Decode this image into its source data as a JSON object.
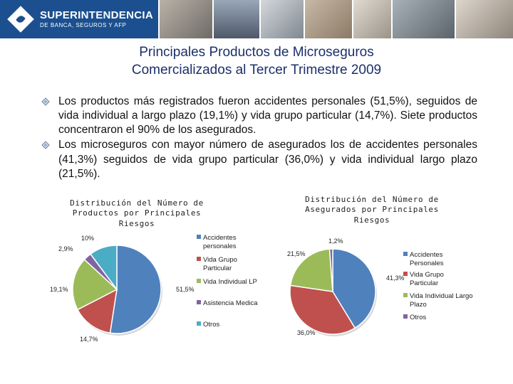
{
  "header": {
    "logo_line1": "SUPERINTENDENCIA",
    "logo_line2": "DE BANCA, SEGUROS Y AFP"
  },
  "title_line1": "Principales Productos de Microseguros",
  "title_line2": "Comercializados al Tercer Trimestre 2009",
  "bullets": [
    "Los productos más registrados fueron accidentes personales (51,5%), seguidos de vida individual  a largo plazo (19,1%) y vida grupo particular (14,7%). Siete productos concentraron el 90% de los asegurados.",
    "Los microseguros con mayor número de asegurados los de accidentes personales (41,3%) seguidos de vida grupo particular (36,0%) y vida individual largo plazo (21,5%)."
  ],
  "chart_data": [
    {
      "type": "pie",
      "title_lines": [
        "Distribución del Número de",
        "Productos  por Principales",
        "Riesgos"
      ],
      "categories": [
        "Accidentes personales",
        "Vida Grupo Particular",
        "Vida Individual LP",
        "Asistencia Medica",
        "Otros"
      ],
      "legend_lines": [
        [
          "Accidentes",
          "personales"
        ],
        [
          "Vida Grupo",
          "Particular"
        ],
        [
          "Vida Individual LP"
        ],
        [
          "Asistencia Medica"
        ],
        [
          "Otros"
        ]
      ],
      "values": [
        51.5,
        14.7,
        19.1,
        2.9,
        10.0
      ],
      "data_labels": [
        "51,5%",
        "14,7%",
        "19,1%",
        "2,9%",
        "10%"
      ],
      "colors": [
        "#4f81bd",
        "#c0504d",
        "#9bbb59",
        "#8064a2",
        "#4bacc6"
      ],
      "legend": "right"
    },
    {
      "type": "pie",
      "title_lines": [
        "Distribución del Número de",
        "Asegurados por Principales",
        "Riesgos"
      ],
      "categories": [
        "Accidentes Personales",
        "Vida Grupo Particular",
        "Vida Individual Largo Plazo",
        "Otros"
      ],
      "legend_lines": [
        [
          "Accidentes",
          "Personales"
        ],
        [
          "Vida Grupo",
          "Particular"
        ],
        [
          "Vida Individual Largo",
          "Plazo"
        ],
        [
          "Otros"
        ]
      ],
      "values": [
        41.3,
        36.0,
        21.5,
        1.2
      ],
      "data_labels": [
        "41,3%",
        "36,0%",
        "21,5%",
        "1,2%"
      ],
      "colors": [
        "#4f81bd",
        "#c0504d",
        "#9bbb59",
        "#8064a2"
      ],
      "legend": "right"
    }
  ]
}
